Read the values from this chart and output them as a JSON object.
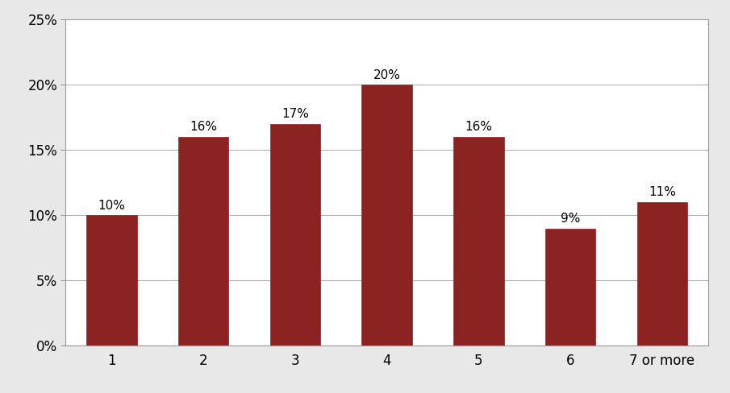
{
  "categories": [
    "1",
    "2",
    "3",
    "4",
    "5",
    "6",
    "7 or more"
  ],
  "values": [
    10,
    16,
    17,
    20,
    16,
    9,
    11
  ],
  "bar_color": "#8B2323",
  "bar_edge_color": "#8B2323",
  "background_color": "#ffffff",
  "figure_background": "#e8e8e8",
  "grid_color": "#aaaaaa",
  "spine_color": "#999999",
  "ylim": [
    0,
    25
  ],
  "yticks": [
    0,
    5,
    10,
    15,
    20,
    25
  ],
  "ytick_labels": [
    "0%",
    "5%",
    "10%",
    "15%",
    "20%",
    "25%"
  ],
  "tick_fontsize": 12,
  "annotation_fontsize": 11,
  "bar_width": 0.55
}
